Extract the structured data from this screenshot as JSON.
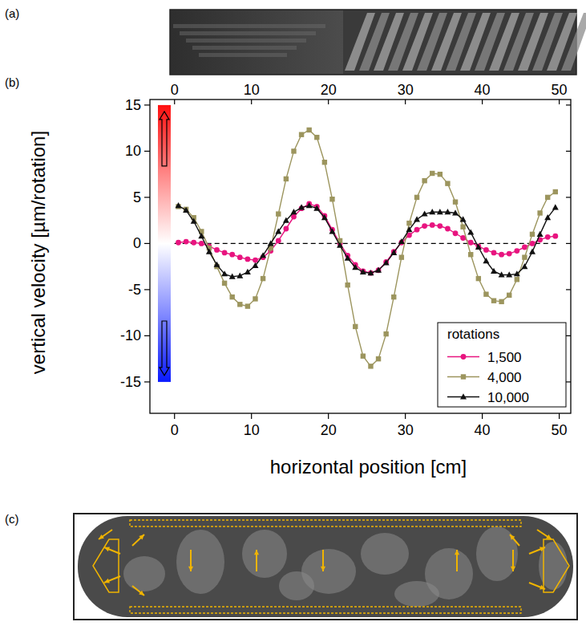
{
  "panel_labels": [
    "(a)",
    "(b)",
    "(c)"
  ],
  "chart_data": {
    "type": "line",
    "x_label": "horizontal position [cm]",
    "y_label": "vertical velocity [µm/rotation]",
    "x": [
      0.5,
      1.5,
      2.5,
      3.5,
      4.5,
      5.5,
      6.5,
      7.5,
      8.5,
      9.5,
      10.5,
      11.5,
      12.5,
      13.5,
      14.5,
      15.5,
      16.5,
      17.5,
      18.5,
      19.5,
      20.5,
      21.5,
      22.5,
      23.5,
      24.5,
      25.5,
      26.5,
      27.5,
      28.5,
      29.5,
      30.5,
      31.5,
      32.5,
      33.5,
      34.5,
      35.5,
      36.5,
      37.5,
      38.5,
      39.5,
      40.5,
      41.5,
      42.5,
      43.5,
      44.5,
      45.5,
      46.5,
      47.5,
      48.5,
      49.5
    ],
    "series": [
      {
        "name": "1,500",
        "color": "#e8147f",
        "marker": "circle",
        "line_style": "solid",
        "values": [
          0.1,
          0.2,
          0.1,
          0,
          -0.3,
          -0.7,
          -1.0,
          -1.2,
          -1.5,
          -1.7,
          -1.8,
          -1.5,
          -0.8,
          0.3,
          1.6,
          2.9,
          3.8,
          4.3,
          4.0,
          3.0,
          1.5,
          0,
          -1.3,
          -2.3,
          -3.0,
          -3.2,
          -2.9,
          -2.0,
          -0.9,
          0.1,
          0.9,
          1.5,
          1.9,
          2.0,
          1.9,
          1.6,
          1.1,
          0.6,
          0.1,
          -0.3,
          -0.7,
          -1.0,
          -1.2,
          -1.1,
          -0.8,
          -0.4,
          0,
          0.4,
          0.7,
          0.8
        ]
      },
      {
        "name": "4,000",
        "color": "#9c955e",
        "marker": "square",
        "line_style": "solid",
        "values": [
          4.0,
          3.7,
          2.8,
          1.3,
          -0.5,
          -2.5,
          -4.3,
          -5.8,
          -6.6,
          -6.8,
          -6.0,
          -3.8,
          -0.5,
          3.2,
          7.0,
          10.0,
          11.8,
          12.3,
          11.5,
          8.8,
          4.8,
          0.3,
          -4.5,
          -9.0,
          -12.2,
          -13.3,
          -12.5,
          -9.8,
          -5.8,
          -1.5,
          2.2,
          5.0,
          6.8,
          7.6,
          7.5,
          6.5,
          4.5,
          1.8,
          -1.2,
          -3.8,
          -5.5,
          -6.2,
          -6.3,
          -5.6,
          -3.9,
          -1.5,
          1.0,
          3.3,
          5.0,
          5.6
        ]
      },
      {
        "name": "10,000",
        "color": "#111111",
        "marker": "triangle",
        "line_style": "solid",
        "values": [
          4.1,
          3.6,
          2.4,
          0.8,
          -0.9,
          -2.3,
          -3.3,
          -3.6,
          -3.5,
          -3.1,
          -2.4,
          -1.3,
          0,
          1.3,
          2.5,
          3.4,
          3.9,
          4.1,
          3.8,
          2.8,
          1.3,
          -0.2,
          -1.6,
          -2.6,
          -3.1,
          -3.2,
          -2.9,
          -2.1,
          -1.0,
          0.2,
          1.5,
          2.6,
          3.2,
          3.4,
          3.4,
          3.4,
          3.3,
          2.6,
          1.2,
          -0.4,
          -1.9,
          -3.0,
          -3.4,
          -3.4,
          -3.3,
          -2.5,
          -0.9,
          1.0,
          2.8,
          3.9
        ]
      }
    ],
    "xlim": [
      -3.2,
      51.5
    ],
    "ylim": [
      -18.4,
      15.6
    ],
    "xticks": [
      0,
      10,
      20,
      30,
      40,
      50
    ],
    "yticks": [
      -15,
      -10,
      -5,
      0,
      5,
      10,
      15
    ],
    "legend": "lower right",
    "legend_title": "rotations",
    "reference_line": {
      "value": 0,
      "x": [
        0,
        50
      ]
    }
  }
}
